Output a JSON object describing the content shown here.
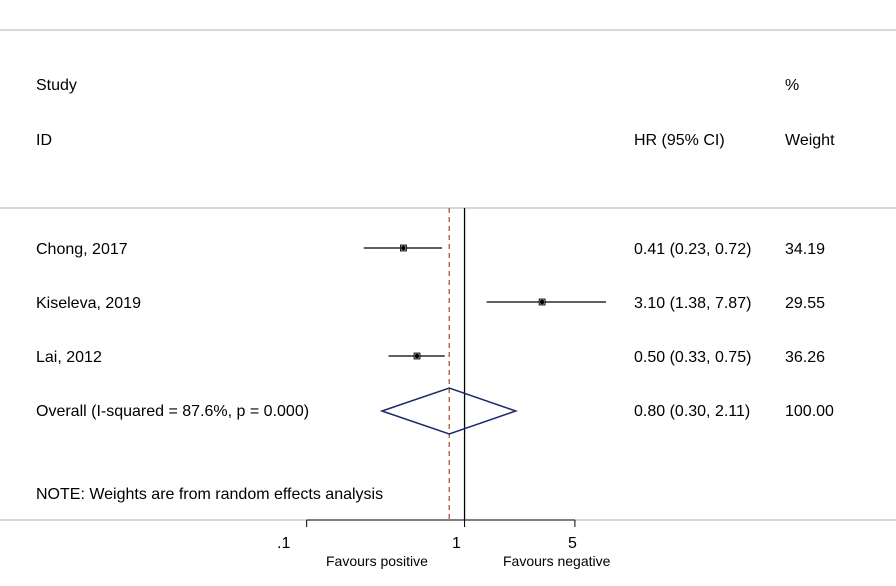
{
  "chart_data": {
    "type": "forest",
    "header": {
      "study_line1": "Study",
      "study_line2": "ID",
      "effect_label": "HR (95% CI)",
      "weight_line1": "%",
      "weight_line2": "Weight"
    },
    "studies": [
      {
        "label": "Chong, 2017",
        "hr": 0.41,
        "lo": 0.23,
        "hi": 0.72,
        "ci_text": "0.41 (0.23, 0.72)",
        "weight": "34.19"
      },
      {
        "label": "Kiseleva, 2019",
        "hr": 3.1,
        "lo": 1.38,
        "hi": 7.87,
        "ci_text": "3.10 (1.38, 7.87)",
        "weight": "29.55"
      },
      {
        "label": "Lai, 2012",
        "hr": 0.5,
        "lo": 0.33,
        "hi": 0.75,
        "ci_text": "0.50 (0.33, 0.75)",
        "weight": "36.26"
      }
    ],
    "overall": {
      "label": "Overall  (I-squared = 87.6%, p = 0.000)",
      "hr": 0.8,
      "lo": 0.3,
      "hi": 2.11,
      "ci_text": "0.80 (0.30, 2.11)",
      "weight": "100.00"
    },
    "note": "NOTE: Weights are from random effects analysis",
    "x_axis": {
      "scale": "log",
      "range": [
        0.0708,
        7.87
      ],
      "ticks": [
        {
          "value": 0.1,
          "label": ".1"
        },
        {
          "value": 1,
          "label": "1"
        },
        {
          "value": 5,
          "label": "5"
        }
      ],
      "null_line": 1,
      "left_label": "Favours positive",
      "right_label": "Favours negative"
    },
    "colors": {
      "diamond": "#1f2a6b",
      "dashed": "#b5523a",
      "line": "#000000",
      "frame": "#b0b0b0"
    }
  }
}
